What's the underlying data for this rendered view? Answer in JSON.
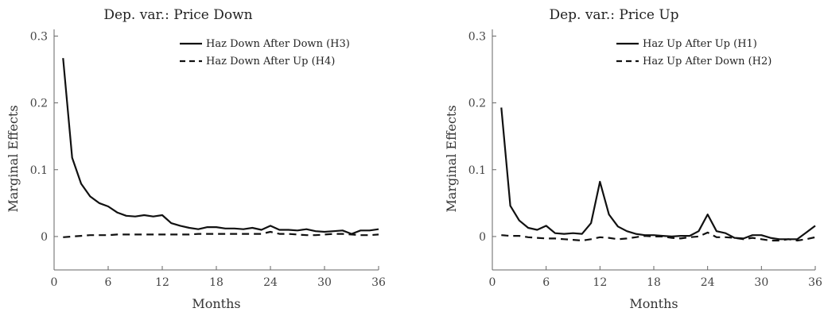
{
  "chart_data": [
    {
      "type": "line",
      "title": "Dep. var.: Price Down",
      "xlabel": "Months",
      "ylabel": "Marginal Effects",
      "xlim": [
        0,
        36
      ],
      "ylim": [
        -0.05,
        0.31
      ],
      "xticks": [
        0,
        6,
        12,
        18,
        24,
        30,
        36
      ],
      "yticks": [
        0,
        0.1,
        0.2,
        0.3
      ],
      "ytick_labels": [
        "0",
        "0.1",
        "0.2",
        "0.3"
      ],
      "grid": false,
      "legend_position": "top-right",
      "series": [
        {
          "name": "Haz Down After Down (H3)",
          "style": "solid",
          "x": [
            1,
            2,
            3,
            4,
            5,
            6,
            7,
            8,
            9,
            10,
            11,
            12,
            13,
            14,
            15,
            16,
            17,
            18,
            19,
            20,
            21,
            22,
            23,
            24,
            25,
            26,
            27,
            28,
            29,
            30,
            31,
            32,
            33,
            34,
            35,
            36
          ],
          "y": [
            0.267,
            0.118,
            0.079,
            0.06,
            0.05,
            0.045,
            0.036,
            0.031,
            0.03,
            0.032,
            0.03,
            0.032,
            0.02,
            0.016,
            0.013,
            0.011,
            0.014,
            0.014,
            0.012,
            0.012,
            0.011,
            0.013,
            0.01,
            0.016,
            0.01,
            0.01,
            0.009,
            0.011,
            0.008,
            0.007,
            0.008,
            0.009,
            0.004,
            0.009,
            0.009,
            0.011
          ]
        },
        {
          "name": "Haz Down After Up (H4)",
          "style": "dashed",
          "x": [
            1,
            2,
            3,
            4,
            5,
            6,
            7,
            8,
            9,
            10,
            11,
            12,
            13,
            14,
            15,
            16,
            17,
            18,
            19,
            20,
            21,
            22,
            23,
            24,
            25,
            26,
            27,
            28,
            29,
            30,
            31,
            32,
            33,
            34,
            35,
            36
          ],
          "y": [
            -0.001,
            0.0,
            0.001,
            0.002,
            0.002,
            0.002,
            0.003,
            0.003,
            0.003,
            0.003,
            0.003,
            0.003,
            0.003,
            0.003,
            0.003,
            0.004,
            0.004,
            0.004,
            0.004,
            0.004,
            0.004,
            0.004,
            0.004,
            0.007,
            0.004,
            0.004,
            0.003,
            0.002,
            0.002,
            0.003,
            0.004,
            0.004,
            0.003,
            0.002,
            0.002,
            0.003
          ]
        }
      ]
    },
    {
      "type": "line",
      "title": "Dep. var.: Price Up",
      "xlabel": "Months",
      "ylabel": "Marginal Effects",
      "xlim": [
        0,
        36
      ],
      "ylim": [
        -0.05,
        0.31
      ],
      "xticks": [
        0,
        6,
        12,
        18,
        24,
        30,
        36
      ],
      "yticks": [
        0,
        0.1,
        0.2,
        0.3
      ],
      "ytick_labels": [
        "0",
        "0.1",
        "0.2",
        "0.3"
      ],
      "grid": false,
      "legend_position": "top-right",
      "series": [
        {
          "name": "Haz Up After Up (H1)",
          "style": "solid",
          "x": [
            1,
            2,
            3,
            4,
            5,
            6,
            7,
            8,
            9,
            10,
            11,
            12,
            13,
            14,
            15,
            16,
            17,
            18,
            19,
            20,
            21,
            22,
            23,
            24,
            25,
            26,
            27,
            28,
            29,
            30,
            31,
            32,
            33,
            34,
            35,
            36
          ],
          "y": [
            0.193,
            0.046,
            0.024,
            0.013,
            0.01,
            0.016,
            0.005,
            0.004,
            0.005,
            0.004,
            0.02,
            0.082,
            0.033,
            0.015,
            0.008,
            0.004,
            0.002,
            0.002,
            0.001,
            0.0,
            0.001,
            0.001,
            0.008,
            0.033,
            0.008,
            0.005,
            -0.002,
            -0.003,
            0.002,
            0.002,
            -0.002,
            -0.004,
            -0.004,
            -0.004,
            0.006,
            0.016
          ]
        },
        {
          "name": "Haz Up After Down (H2)",
          "style": "dashed",
          "x": [
            1,
            2,
            3,
            4,
            5,
            6,
            7,
            8,
            9,
            10,
            11,
            12,
            13,
            14,
            15,
            16,
            17,
            18,
            19,
            20,
            21,
            22,
            23,
            24,
            25,
            26,
            27,
            28,
            29,
            30,
            31,
            32,
            33,
            34,
            35,
            36
          ],
          "y": [
            0.002,
            0.001,
            0.001,
            -0.001,
            -0.002,
            -0.003,
            -0.003,
            -0.004,
            -0.005,
            -0.006,
            -0.004,
            -0.001,
            -0.002,
            -0.004,
            -0.003,
            -0.001,
            0.001,
            0.0,
            0.0,
            -0.002,
            -0.003,
            -0.001,
            0.0,
            0.006,
            -0.001,
            -0.001,
            -0.002,
            -0.004,
            -0.002,
            -0.004,
            -0.006,
            -0.006,
            -0.004,
            -0.006,
            -0.004,
            -0.001
          ]
        }
      ]
    }
  ]
}
